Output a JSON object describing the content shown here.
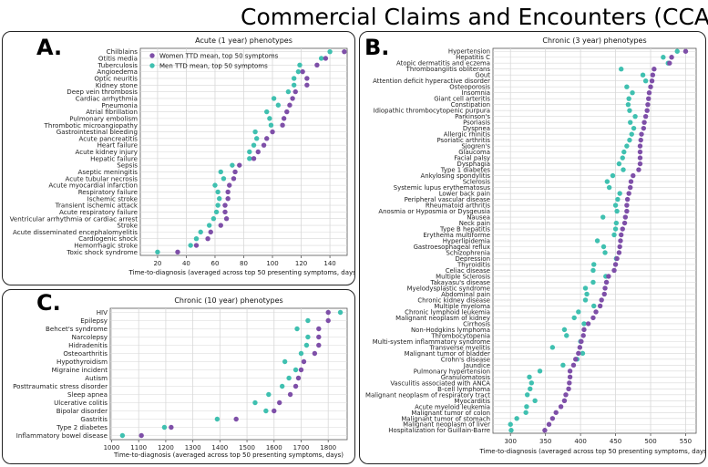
{
  "page_title": "Commercial Claims and Encounters (CCAE)",
  "colors": {
    "women": "#7e4fa8",
    "men": "#3fc0b0",
    "grid": "#d8d8d8",
    "axis": "#555555"
  },
  "chart_data": [
    {
      "type": "scatter",
      "panel_label": "A.",
      "title": "Acute (1 year) phenotypes",
      "xlabel": "Time-to-diagnosis (averaged across top 50 presenting symptoms, days)",
      "ylabel": "",
      "xlim": [
        8,
        152
      ],
      "xticks": [
        20,
        40,
        60,
        80,
        100,
        120,
        140
      ],
      "grid": true,
      "legend_position": "top-left",
      "categories": [
        "Chilblains",
        "Otitis media",
        "Tuberculosis",
        "Angioedema",
        "Optic neuritis",
        "Kidney stone",
        "Deep vein thrombosis",
        "Cardiac arrhythmia",
        "Pneumonia",
        "Atrial fibrillation",
        "Pulmonary embolism",
        "Thrombotic microangiopathy",
        "Gastrointestinal bleeding",
        "Acute pancreatitis",
        "Heart failure",
        "Acute kidney injury",
        "Hepatic failure",
        "Sepsis",
        "Aseptic meningitis",
        "Acute tubular necrosis",
        "Acute myocardial infarction",
        "Respiratory failure",
        "Ischemic stroke",
        "Transient ischemic attack",
        "Acute respiratory failure",
        "Ventricular arrhythmia or cardiac arrest",
        "Stroke",
        "Acute disseminated encephalomyelitis",
        "Cardiogenic shock",
        "Hemorrhagic stroke",
        "Toxic shock syndrome"
      ],
      "series": [
        {
          "name": "Women TTD mean, top 50 symptoms",
          "color": "#7e4fa8",
          "values": [
            150,
            137,
            131,
            121,
            124,
            124,
            116,
            114,
            112,
            110,
            108,
            107,
            100,
            96,
            94,
            90,
            87,
            77,
            74,
            73,
            70,
            69,
            69,
            67,
            67,
            68,
            64,
            57,
            55,
            47,
            34
          ]
        },
        {
          "name": "Men TTD mean, top 50 symptoms",
          "color": "#3fc0b0",
          "values": [
            140,
            134,
            119,
            118,
            115,
            115,
            111,
            101,
            104,
            96,
            98,
            99,
            88,
            89,
            87,
            84,
            84,
            72,
            64,
            66,
            60,
            62,
            63,
            62,
            61,
            59,
            56,
            50,
            47,
            43,
            20
          ]
        }
      ]
    },
    {
      "type": "scatter",
      "panel_label": "B.",
      "title": "Chronic (3 year) phenotypes",
      "xlabel": "Time-to-diagnosis (averaged across top 50 presenting symptoms, days)",
      "ylabel": "",
      "xlim": [
        275,
        565
      ],
      "xticks": [
        300,
        350,
        400,
        450,
        500,
        550
      ],
      "grid": true,
      "categories": [
        "Hypertension",
        "Hepatitis C",
        "Atopic dermatitis and eczema",
        "Thromboangiitis obliterans",
        "Gout",
        "Attention deficit hyperactive disorder",
        "Osteoporosis",
        "Insomnia",
        "Giant cell arteritis",
        "Constipation",
        "Idiopathic thrombocytopenic purpura",
        "Parkinson's",
        "Psoriasis",
        "Dyspnea",
        "Allergic rhinitis",
        "Psoriatic arthritis",
        "Sjogren's",
        "Glaucoma",
        "Facial palsy",
        "Dysphagia",
        "Type 1 diabetes",
        "Ankylosing spondylitis",
        "Sclerosis",
        "Systemic lupus erythematosus",
        "Lower back pain",
        "Peripheral vascular disease",
        "Rheumatoid arthritis",
        "Anosmia or Hyposmia or Dysgeusia",
        "Nausea",
        "Neck pain",
        "Type B hepatitis",
        "Erythema multiforme",
        "Hyperlipidemia",
        "Gastroesophageal reflux",
        "Schizophrenia",
        "Depression",
        "Thyroiditis",
        "Celiac disease",
        "Multiple Sclerosis",
        "Takayasu's disease",
        "Myelodysplastic syndrome",
        "Abdominal pain",
        "Chronic kidney disease",
        "Multiple myeloma",
        "Chronic lymphoid leukemia",
        "Malignant neoplasm of kidney",
        "Cirrhosis",
        "Non-Hodgkins lymphoma",
        "Thrombocytopenia",
        "Multi-system inflammatory syndrome",
        "Transverse myelitis",
        "Malignant tumor of bladder",
        "Crohn's disease",
        "Jaundice",
        "Pulmonary hypertension",
        "Granulomatosis",
        "Vasculitis associated with ANCA",
        "B-cell lymphoma",
        "Malignant neoplasm of respiratory tract",
        "Myocarditis",
        "Acute myeloid leukemia",
        "Malignant tumor of colon",
        "Malignant tumor of stomach",
        "Malignant neoplasm of liver",
        "Hospitalization for Guillain-Barre"
      ],
      "series": [
        {
          "name": "Women TTD mean, top 50 symptoms",
          "color": "#7e4fa8",
          "values": [
            550,
            530,
            527,
            505,
            503,
            502,
            500,
            498,
            497,
            496,
            495,
            493,
            491,
            490,
            487,
            486,
            485,
            485,
            485,
            485,
            483,
            475,
            472,
            471,
            469,
            467,
            466,
            466,
            464,
            463,
            460,
            458,
            457,
            456,
            455,
            452,
            450,
            448,
            440,
            437,
            435,
            434,
            430,
            428,
            422,
            418,
            411,
            405,
            404,
            401,
            399,
            397,
            393,
            390,
            385,
            385,
            384,
            383,
            379,
            377,
            372,
            365,
            360,
            355,
            349
          ]
        },
        {
          "name": "Men TTD mean, top 50 symptoms",
          "color": "#3fc0b0",
          "values": [
            538,
            518,
            525,
            458,
            489,
            493,
            466,
            474,
            469,
            468,
            470,
            478,
            471,
            476,
            473,
            470,
            466,
            462,
            460,
            455,
            461,
            446,
            438,
            441,
            456,
            453,
            450,
            452,
            432,
            451,
            450,
            448,
            424,
            433,
            435,
            451,
            419,
            418,
            436,
            418,
            407,
            409,
            407,
            419,
            397,
            391,
            405,
            377,
            380,
            400,
            360,
            403,
            395,
            375,
            342,
            327,
            330,
            328,
            324,
            335,
            323,
            322,
            309,
            300,
            301
          ]
        }
      ]
    },
    {
      "type": "scatter",
      "panel_label": "C.",
      "title": "Chronic (10 year) phenotypes",
      "xlabel": "Time-to-diagnosis (averaged across top 50 presenting symptoms, days)",
      "ylabel": "",
      "xlim": [
        995,
        1870
      ],
      "xticks": [
        1000,
        1100,
        1200,
        1300,
        1400,
        1500,
        1600,
        1700,
        1800
      ],
      "grid": true,
      "categories": [
        "HIV",
        "Epilepsy",
        "Behcet's syndrome",
        "Narcolepsy",
        "Hidradenitis",
        "Osteoarthritis",
        "Hypothyroidism",
        "Migraine incident",
        "Autism",
        "Posttraumatic stress disorder",
        "Sleep apnea",
        "Ulcerative colitis",
        "Bipolar disorder",
        "Gastritis",
        "Type 2 diabetes",
        "Inflammatory bowel disease"
      ],
      "series": [
        {
          "name": "Women TTD mean, top 50 symptoms",
          "color": "#7e4fa8",
          "values": [
            1800,
            1800,
            1765,
            1765,
            1765,
            1750,
            1710,
            1700,
            1690,
            1680,
            1660,
            1620,
            1600,
            1460,
            1220,
            1110
          ]
        },
        {
          "name": "Men TTD mean, top 50 symptoms",
          "color": "#3fc0b0",
          "values": [
            1845,
            1725,
            1685,
            1725,
            1720,
            1700,
            1640,
            1680,
            1655,
            1630,
            1580,
            1530,
            1570,
            1390,
            1195,
            1040
          ]
        }
      ]
    }
  ]
}
